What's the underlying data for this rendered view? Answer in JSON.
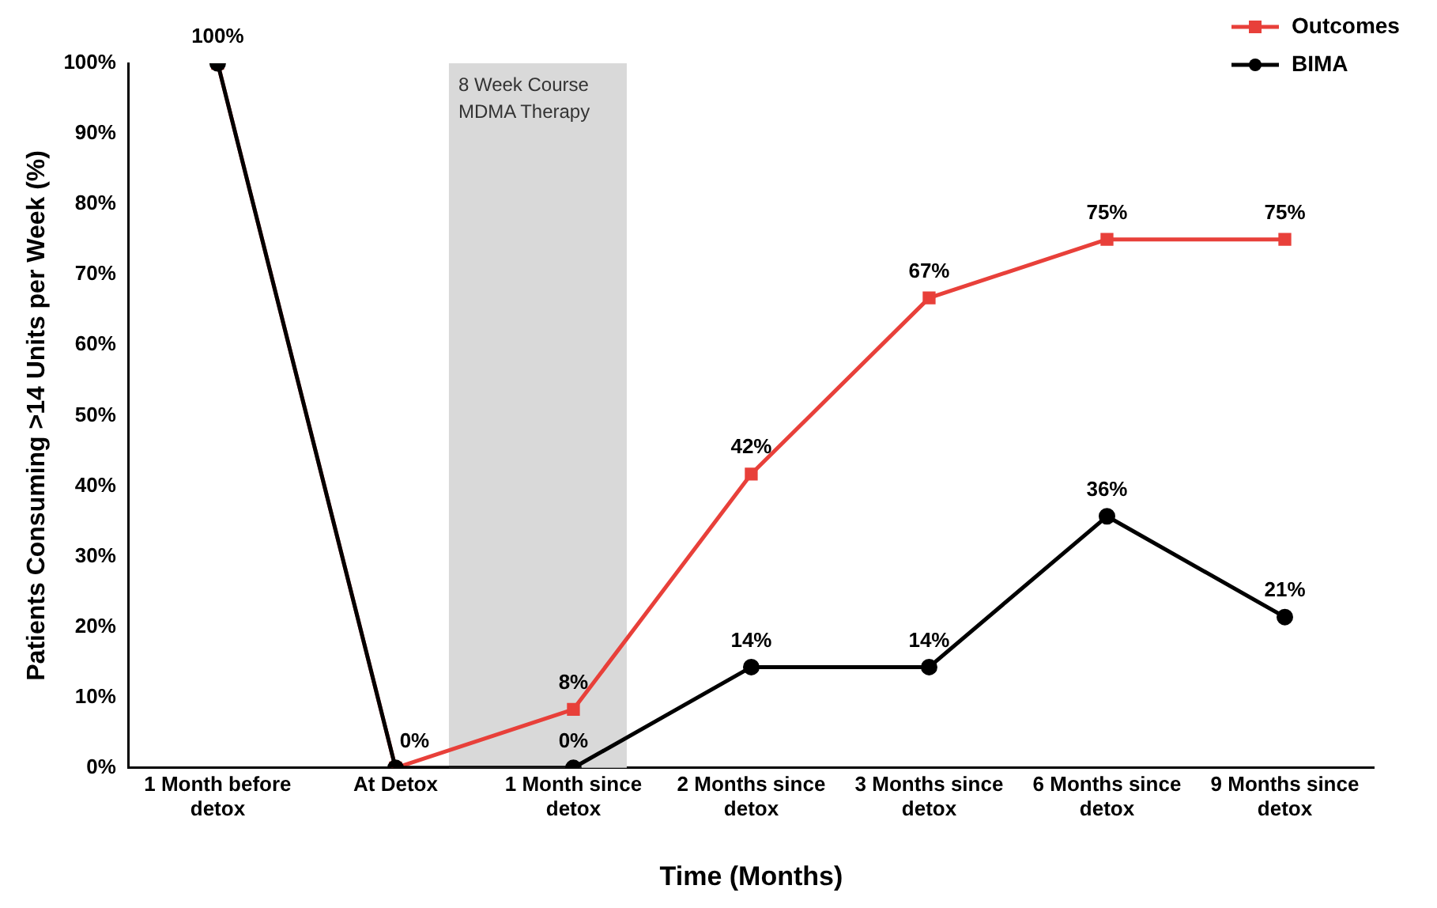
{
  "chart_data": {
    "type": "line",
    "xlabel": "Time (Months)",
    "ylabel": "Patients Consuming >14 Units per Week (%)",
    "categories": [
      "1 Month before detox",
      "At Detox",
      "1 Month since detox",
      "2 Months since detox",
      "3 Months since detox",
      "6 Months since detox",
      "9 Months since detox"
    ],
    "series": [
      {
        "name": "Outcomes",
        "color": "#e8403a",
        "marker": "square",
        "values": [
          100,
          0,
          8.3,
          41.7,
          66.7,
          75,
          75
        ],
        "value_labels": [
          "100%",
          "0%",
          "8%",
          "42%",
          "67%",
          "75%",
          "75%"
        ]
      },
      {
        "name": "BIMA",
        "color": "#000000",
        "marker": "circle",
        "values": [
          100,
          0,
          0,
          14.3,
          14.3,
          35.7,
          21.4
        ],
        "value_labels": [
          null,
          null,
          "0%",
          "14%",
          "14%",
          "36%",
          "21%"
        ]
      }
    ],
    "ylim": [
      0,
      100
    ],
    "yticks": [
      {
        "value": 0,
        "label": "0%"
      },
      {
        "value": 10,
        "label": "10%"
      },
      {
        "value": 20,
        "label": "20%"
      },
      {
        "value": 30,
        "label": "30%"
      },
      {
        "value": 40,
        "label": "40%"
      },
      {
        "value": 50,
        "label": "50%"
      },
      {
        "value": 60,
        "label": "60%"
      },
      {
        "value": 70,
        "label": "70%"
      },
      {
        "value": 80,
        "label": "80%"
      },
      {
        "value": 90,
        "label": "90%"
      },
      {
        "value": 100,
        "label": "100%"
      }
    ],
    "annotations": [
      "8 Week Course\nMDMA Therapy"
    ],
    "grid": false,
    "legend": "top right",
    "line_style": "solid"
  }
}
